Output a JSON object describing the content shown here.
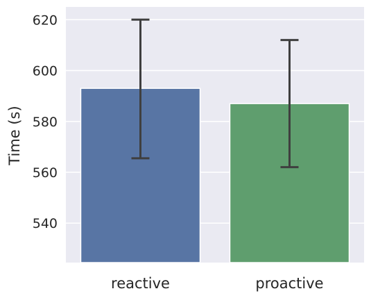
{
  "chart_data": {
    "type": "bar",
    "categories": [
      "reactive",
      "proactive"
    ],
    "values": [
      593,
      587
    ],
    "error_bars": [
      {
        "low": 565.5,
        "high": 620
      },
      {
        "low": 562,
        "high": 612
      }
    ],
    "title": "",
    "xlabel": "",
    "ylabel": "Time (s)",
    "ylim": [
      524.5,
      625
    ],
    "yticks": [
      540,
      560,
      580,
      600,
      620
    ],
    "grid": true,
    "legend": "none",
    "colors": {
      "background": "#eaeaf2",
      "grid": "#ffffff",
      "bars": [
        "#5875a4",
        "#5f9e6e"
      ],
      "error": "#3f3f3f",
      "text": "#262626"
    }
  }
}
